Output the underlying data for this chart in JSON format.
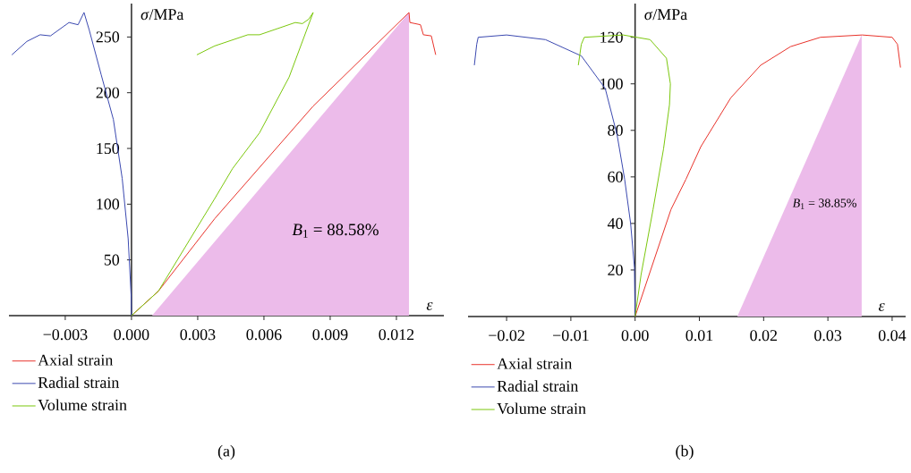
{
  "chart_data": [
    {
      "type": "line",
      "title": "(a)",
      "xlabel": "*ε*",
      "ylabel": "*σ*/MPa",
      "legend": "bottom",
      "xlim": [
        -0.00555,
        0.01415
      ],
      "ylim": [
        0,
        280
      ],
      "xticks": [
        {
          "value": -0.003,
          "label": "−0.003"
        },
        {
          "value": 0,
          "label": "0.000"
        },
        0.003,
        0.006,
        0.009,
        0.012
      ],
      "yticks": [
        50,
        100,
        150,
        200,
        250
      ],
      "annotations": [
        "*B*$_{1}$ = 88.58%"
      ],
      "series": [
        {
          "type": "area",
          "color": "#ecbbea",
          "x": [
            0.00093,
            0.01257
          ],
          "values": [
            0,
            272
          ]
        },
        {
          "name": "Axial strain",
          "color": "#e8322a",
          "x": [
            0,
            0.00122,
            0.00377,
            0.00823,
            0.01257,
            0.01261,
            0.01309,
            0.01322,
            0.01358,
            0.01378
          ],
          "values": [
            0,
            22,
            87,
            188,
            272,
            263,
            261,
            252,
            251,
            234
          ]
        },
        {
          "name": "Radial strain",
          "color": "#3a48b0",
          "x": [
            0,
            -1e-05,
            -0.00015,
            -0.00042,
            -0.00082,
            -0.00137,
            -0.00191,
            -0.00215,
            -0.00242,
            -0.00283,
            -0.00367,
            -0.00414,
            -0.00474,
            -0.00542
          ],
          "values": [
            0,
            16,
            69,
            123,
            176,
            216,
            256,
            272,
            261,
            263,
            251,
            252,
            246,
            234
          ]
        },
        {
          "name": "Volume strain",
          "color": "#7ac70c",
          "x": [
            0,
            0.00122,
            0.00377,
            0.00458,
            0.0058,
            0.00714,
            0.00823,
            0.00803,
            0.00774,
            0.00742,
            0.0058,
            0.00527,
            0.00377,
            0.00296
          ],
          "values": [
            0,
            22,
            105,
            132,
            164,
            214,
            272,
            266,
            262,
            263,
            252,
            252,
            242,
            234
          ]
        }
      ]
    },
    {
      "type": "line",
      "title": "(b)",
      "xlabel": "*ε*",
      "ylabel": "*σ*/MPa",
      "legend": "bottom",
      "xlim": [
        -0.026,
        0.0421
      ],
      "ylim": [
        0,
        134.5
      ],
      "xticks": [
        {
          "value": -0.02,
          "label": "−0.02"
        },
        {
          "value": -0.01,
          "label": "−0.01"
        },
        {
          "value": 0,
          "label": "0.00"
        },
        0.01,
        0.02,
        0.03,
        0.04
      ],
      "yticks": [
        20,
        40,
        60,
        80,
        100,
        120
      ],
      "annotations": [
        "*B*$_{1}$ = 38.85%"
      ],
      "series": [
        {
          "type": "area",
          "color": "#ecbbea",
          "x": [
            0.0159,
            0.03526
          ],
          "values": [
            0,
            121
          ]
        },
        {
          "name": "Axial strain",
          "color": "#e8322a",
          "x": [
            0,
            0.00558,
            0.00791,
            0.01023,
            0.01489,
            0.01954,
            0.02419,
            0.02884,
            0.03535,
            0.04,
            0.04083,
            0.0413
          ],
          "values": [
            0,
            46,
            59,
            73,
            94,
            108,
            116,
            120,
            121,
            120,
            117,
            107
          ]
        },
        {
          "name": "Radial strain",
          "color": "#3a48b0",
          "x": [
            0,
            -0.0001,
            -0.0007,
            -0.00163,
            -0.0028,
            -0.00465,
            -0.00837,
            -0.01395,
            -0.02,
            -0.02442,
            -0.02465,
            -0.02502
          ],
          "values": [
            0,
            21,
            40,
            59,
            78,
            98,
            112,
            119,
            121,
            120,
            117,
            108
          ]
        },
        {
          "name": "Volume strain",
          "color": "#7ac70c",
          "x": [
            0,
            0.00093,
            0.00279,
            0.00442,
            0.00535,
            0.00549,
            0.00488,
            0.00233,
            -0.00186,
            -0.00791,
            -0.00837,
            -0.00884
          ],
          "values": [
            0,
            18,
            46,
            72,
            91,
            100,
            111,
            119,
            121,
            120,
            117,
            108
          ]
        }
      ]
    }
  ]
}
